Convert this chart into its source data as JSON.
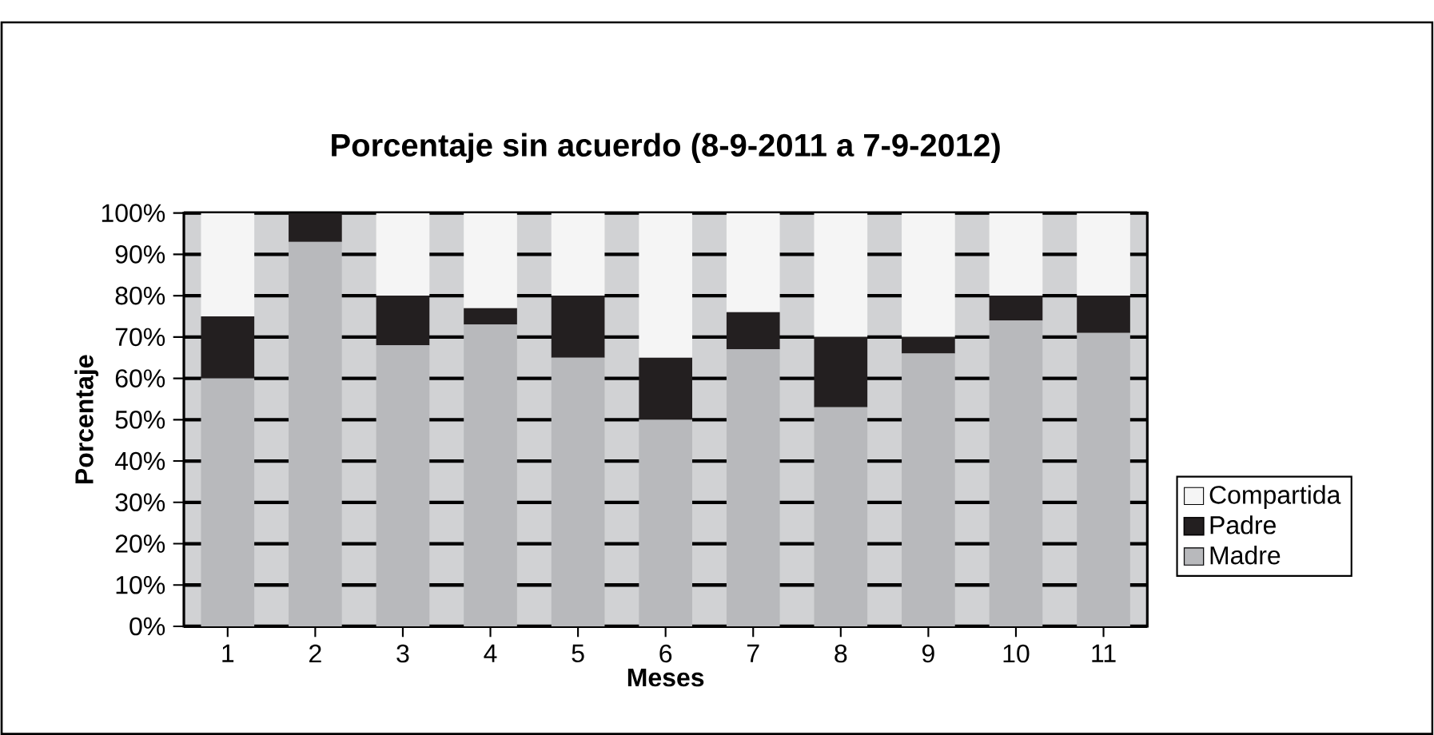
{
  "chart_data": {
    "type": "bar",
    "stacked": true,
    "title": "Porcentaje sin acuerdo (8-9-2011 a 7-9-2012)",
    "xlabel": "Meses",
    "ylabel": "Porcentaje",
    "categories": [
      "1",
      "2",
      "3",
      "4",
      "5",
      "6",
      "7",
      "8",
      "9",
      "10",
      "11"
    ],
    "series": [
      {
        "name": "Madre",
        "color": "#b8b9bc",
        "values": [
          60,
          93,
          68,
          73,
          65,
          50,
          67,
          53,
          66,
          74,
          71
        ]
      },
      {
        "name": "Padre",
        "color": "#231f20",
        "values": [
          15,
          7,
          12,
          4,
          15,
          15,
          9,
          17,
          4,
          6,
          9
        ]
      },
      {
        "name": "Compartida",
        "color": "#f5f5f5",
        "values": [
          25,
          0,
          20,
          23,
          20,
          35,
          24,
          30,
          30,
          20,
          20
        ]
      }
    ],
    "ylim": [
      0,
      100
    ],
    "yticks": [
      {
        "value": 0,
        "label": "0%"
      },
      {
        "value": 10,
        "label": "10%"
      },
      {
        "value": 20,
        "label": "20%"
      },
      {
        "value": 30,
        "label": "30%"
      },
      {
        "value": 40,
        "label": "40%"
      },
      {
        "value": 50,
        "label": "50%"
      },
      {
        "value": 60,
        "label": "60%"
      },
      {
        "value": 70,
        "label": "70%"
      },
      {
        "value": 80,
        "label": "80%"
      },
      {
        "value": 90,
        "label": "90%"
      },
      {
        "value": 100,
        "label": "100%"
      }
    ],
    "grid": "y",
    "legend": "right"
  }
}
